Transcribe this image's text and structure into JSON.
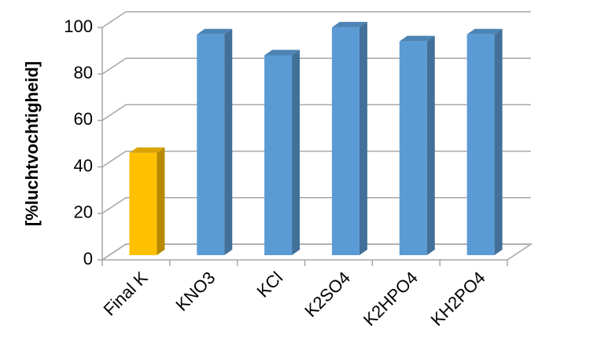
{
  "chart_data": {
    "type": "bar3d",
    "y_label": "[%luchtvochtigheid]",
    "categories": [
      "Final K",
      "KNO3",
      "KCl",
      "K2SO4",
      "K2HPO4",
      "KH2PO4"
    ],
    "values": [
      44,
      95,
      86,
      98,
      92,
      95
    ],
    "colors": [
      "#FFC000",
      "#5B9BD5",
      "#5B9BD5",
      "#5B9BD5",
      "#5B9BD5",
      "#5B9BD5"
    ],
    "ylim": [
      0,
      100
    ],
    "yticks": [
      0,
      20,
      40,
      60,
      80,
      100
    ],
    "grid": true
  }
}
